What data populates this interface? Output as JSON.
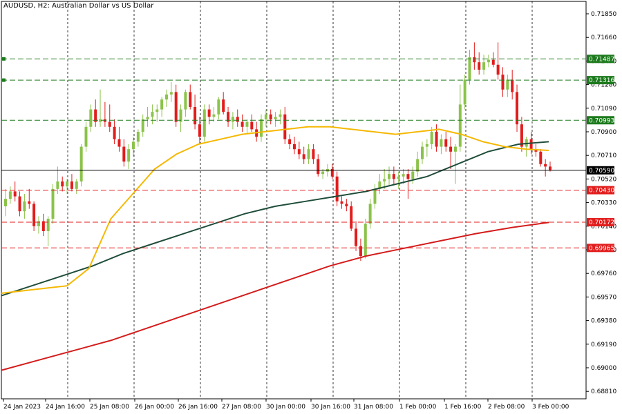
{
  "title": "AUDUSD, H2:  Australian Dollar vs US Dollar",
  "colors": {
    "bull": "#8bc34a",
    "bear": "#e21c1c",
    "ma_fast": "#f5b800",
    "ma_mid": "#1f4d3a",
    "ma_slow": "#d41c1c",
    "support": "#e21c1c",
    "resistance": "#1c7a1c",
    "current": "#000000",
    "grid": "#000000",
    "axis": "#000000"
  },
  "chart_data": {
    "type": "candlestick",
    "symbol": "AUDUSD",
    "timeframe": "H2",
    "ylim": [
      0.6875,
      0.7195
    ],
    "y_ticks": [
      "0.71850",
      "0.71660",
      "0.71470",
      "0.71280",
      "0.71090",
      "0.70900",
      "0.70710",
      "0.70520",
      "0.70330",
      "0.70140",
      "0.69950",
      "0.69760",
      "0.69570",
      "0.69380",
      "0.69190",
      "0.69000",
      "0.68810"
    ],
    "x_ticks": [
      "24 Jan 2023",
      "24 Jan 16:00",
      "25 Jan 08:00",
      "26 Jan 00:00",
      "26 Jan 16:00",
      "27 Jan 08:00",
      "30 Jan 00:00",
      "30 Jan 16:00",
      "31 Jan 08:00",
      "1 Feb 00:00",
      "1 Feb 16:00",
      "2 Feb 08:00",
      "3 Feb 00:00"
    ],
    "vertical_grid_dates": [
      "24 Jan 16:00",
      "26 Jan 00:00",
      "27 Jan 08:00",
      "30 Jan 16:00",
      "1 Feb 00:00",
      "2 Feb 08:00"
    ],
    "current_price": "0.70590",
    "levels": [
      {
        "price": "0.71487",
        "kind": "resistance"
      },
      {
        "price": "0.71316",
        "kind": "resistance"
      },
      {
        "price": "0.70993",
        "kind": "resistance"
      },
      {
        "price": "0.70430",
        "kind": "support"
      },
      {
        "price": "0.70172",
        "kind": "support"
      },
      {
        "price": "0.69965",
        "kind": "support"
      }
    ],
    "ohlc": [
      [
        0.703,
        0.7044,
        0.7022,
        0.7036
      ],
      [
        0.7036,
        0.7046,
        0.7032,
        0.7042
      ],
      [
        0.7042,
        0.705,
        0.7034,
        0.7038
      ],
      [
        0.7038,
        0.7042,
        0.7022,
        0.7026
      ],
      [
        0.7026,
        0.704,
        0.702,
        0.7034
      ],
      [
        0.7034,
        0.7044,
        0.7028,
        0.7032
      ],
      [
        0.7032,
        0.7034,
        0.701,
        0.7014
      ],
      [
        0.7014,
        0.7022,
        0.7008,
        0.7018
      ],
      [
        0.7018,
        0.7024,
        0.7006,
        0.701
      ],
      [
        0.701,
        0.7022,
        0.6998,
        0.702
      ],
      [
        0.702,
        0.7048,
        0.7016,
        0.7044
      ],
      [
        0.7044,
        0.7062,
        0.704,
        0.705
      ],
      [
        0.705,
        0.7054,
        0.7042,
        0.7046
      ],
      [
        0.7046,
        0.7052,
        0.704,
        0.705
      ],
      [
        0.705,
        0.7056,
        0.7042,
        0.7044
      ],
      [
        0.7044,
        0.7052,
        0.704,
        0.705
      ],
      [
        0.705,
        0.708,
        0.7046,
        0.7078
      ],
      [
        0.7078,
        0.7098,
        0.7074,
        0.7094
      ],
      [
        0.7094,
        0.7112,
        0.709,
        0.7108
      ],
      [
        0.7108,
        0.7116,
        0.7094,
        0.7098
      ],
      [
        0.7098,
        0.7124,
        0.7094,
        0.71
      ],
      [
        0.71,
        0.7114,
        0.7094,
        0.7098
      ],
      [
        0.7098,
        0.7112,
        0.709,
        0.7094
      ],
      [
        0.7094,
        0.71,
        0.708,
        0.7084
      ],
      [
        0.7084,
        0.7094,
        0.7074,
        0.7078
      ],
      [
        0.7078,
        0.7084,
        0.7062,
        0.7066
      ],
      [
        0.7066,
        0.708,
        0.706,
        0.7076
      ],
      [
        0.7076,
        0.7086,
        0.707,
        0.7082
      ],
      [
        0.7082,
        0.7092,
        0.7078,
        0.709
      ],
      [
        0.709,
        0.7104,
        0.7086,
        0.71
      ],
      [
        0.71,
        0.711,
        0.7094,
        0.7102
      ],
      [
        0.7102,
        0.7112,
        0.7096,
        0.7106
      ],
      [
        0.7106,
        0.7112,
        0.7098,
        0.7108
      ],
      [
        0.7108,
        0.7118,
        0.7102,
        0.7116
      ],
      [
        0.7116,
        0.7124,
        0.711,
        0.712
      ],
      [
        0.712,
        0.713,
        0.7114,
        0.7122
      ],
      [
        0.7122,
        0.7128,
        0.7094,
        0.7098
      ],
      [
        0.7098,
        0.7112,
        0.709,
        0.7108
      ],
      [
        0.7108,
        0.7124,
        0.7102,
        0.7122
      ],
      [
        0.7122,
        0.7128,
        0.7108,
        0.711
      ],
      [
        0.711,
        0.712,
        0.7092,
        0.7096
      ],
      [
        0.7096,
        0.7102,
        0.708,
        0.7086
      ],
      [
        0.7086,
        0.7112,
        0.7082,
        0.7108
      ],
      [
        0.7108,
        0.7112,
        0.7096,
        0.7102
      ],
      [
        0.7102,
        0.711,
        0.7098,
        0.7104
      ],
      [
        0.7104,
        0.7118,
        0.71,
        0.7116
      ],
      [
        0.7116,
        0.7122,
        0.7104,
        0.7106
      ],
      [
        0.7106,
        0.711,
        0.7094,
        0.7098
      ],
      [
        0.7098,
        0.7106,
        0.7092,
        0.7102
      ],
      [
        0.7102,
        0.7108,
        0.7094,
        0.7098
      ],
      [
        0.7098,
        0.7104,
        0.709,
        0.7094
      ],
      [
        0.7094,
        0.71,
        0.7088,
        0.7098
      ],
      [
        0.7098,
        0.7104,
        0.709,
        0.7092
      ],
      [
        0.7092,
        0.7098,
        0.7082,
        0.7086
      ],
      [
        0.7086,
        0.7104,
        0.7082,
        0.71
      ],
      [
        0.71,
        0.7108,
        0.7094,
        0.7104
      ],
      [
        0.7104,
        0.7108,
        0.7096,
        0.71
      ],
      [
        0.71,
        0.7106,
        0.7094,
        0.7102
      ],
      [
        0.7102,
        0.7108,
        0.7096,
        0.7104
      ],
      [
        0.7104,
        0.711,
        0.708,
        0.7084
      ],
      [
        0.7084,
        0.7088,
        0.7076,
        0.708
      ],
      [
        0.708,
        0.7086,
        0.7072,
        0.7076
      ],
      [
        0.7076,
        0.7082,
        0.7068,
        0.7072
      ],
      [
        0.7072,
        0.7078,
        0.7064,
        0.7068
      ],
      [
        0.7068,
        0.708,
        0.7064,
        0.7076
      ],
      [
        0.7076,
        0.708,
        0.7064,
        0.7068
      ],
      [
        0.7068,
        0.7072,
        0.7054,
        0.7056
      ],
      [
        0.7056,
        0.706,
        0.7052,
        0.7058
      ],
      [
        0.7058,
        0.7064,
        0.7054,
        0.706
      ],
      [
        0.706,
        0.7064,
        0.7052,
        0.7054
      ],
      [
        0.7054,
        0.7058,
        0.703,
        0.7034
      ],
      [
        0.7034,
        0.7038,
        0.7028,
        0.7032
      ],
      [
        0.7032,
        0.7036,
        0.7026,
        0.703
      ],
      [
        0.703,
        0.7034,
        0.701,
        0.7012
      ],
      [
        0.7012,
        0.7018,
        0.6994,
        0.6998
      ],
      [
        0.6998,
        0.7004,
        0.6986,
        0.699
      ],
      [
        0.699,
        0.702,
        0.6988,
        0.7016
      ],
      [
        0.7016,
        0.7036,
        0.7012,
        0.7032
      ],
      [
        0.7032,
        0.7048,
        0.7028,
        0.7044
      ],
      [
        0.7044,
        0.7056,
        0.704,
        0.705
      ],
      [
        0.705,
        0.706,
        0.7044,
        0.7052
      ],
      [
        0.7052,
        0.7062,
        0.7046,
        0.7056
      ],
      [
        0.7056,
        0.7062,
        0.7048,
        0.7052
      ],
      [
        0.7052,
        0.7058,
        0.7044,
        0.7054
      ],
      [
        0.7054,
        0.706,
        0.7048,
        0.7056
      ],
      [
        0.7056,
        0.706,
        0.7036,
        0.7052
      ],
      [
        0.7052,
        0.7062,
        0.7048,
        0.7058
      ],
      [
        0.7058,
        0.7074,
        0.7054,
        0.7068
      ],
      [
        0.7068,
        0.7082,
        0.7064,
        0.7078
      ],
      [
        0.7078,
        0.7084,
        0.707,
        0.708
      ],
      [
        0.708,
        0.7094,
        0.7076,
        0.709
      ],
      [
        0.709,
        0.7096,
        0.7074,
        0.7078
      ],
      [
        0.7078,
        0.7088,
        0.7072,
        0.7084
      ],
      [
        0.7084,
        0.709,
        0.7074,
        0.7078
      ],
      [
        0.7078,
        0.7086,
        0.706,
        0.7074
      ],
      [
        0.7074,
        0.708,
        0.7048,
        0.7078
      ],
      [
        0.7078,
        0.7128,
        0.7074,
        0.7112
      ],
      [
        0.7112,
        0.7136,
        0.7108,
        0.7132
      ],
      [
        0.7132,
        0.7156,
        0.7128,
        0.715
      ],
      [
        0.715,
        0.7162,
        0.714,
        0.7146
      ],
      [
        0.7146,
        0.7154,
        0.7136,
        0.714
      ],
      [
        0.714,
        0.7152,
        0.7136,
        0.7146
      ],
      [
        0.7146,
        0.7152,
        0.7142,
        0.7148
      ],
      [
        0.7148,
        0.7154,
        0.7142,
        0.7144
      ],
      [
        0.7144,
        0.7162,
        0.7132,
        0.7136
      ],
      [
        0.7136,
        0.7142,
        0.7118,
        0.7124
      ],
      [
        0.7124,
        0.7136,
        0.7118,
        0.7132
      ],
      [
        0.7132,
        0.714,
        0.7116,
        0.7122
      ],
      [
        0.7122,
        0.7128,
        0.709,
        0.7096
      ],
      [
        0.7096,
        0.7102,
        0.7074,
        0.7078
      ],
      [
        0.7078,
        0.7086,
        0.707,
        0.7084
      ],
      [
        0.7084,
        0.709,
        0.7072,
        0.7076
      ],
      [
        0.7076,
        0.708,
        0.707,
        0.7074
      ],
      [
        0.7074,
        0.7076,
        0.7062,
        0.7064
      ],
      [
        0.7064,
        0.7068,
        0.7054,
        0.7062
      ],
      [
        0.7062,
        0.7066,
        0.7058,
        0.7059
      ]
    ],
    "ma_fast": [
      0.696,
      0.6962,
      0.6964,
      0.6966,
      0.698,
      0.702,
      0.704,
      0.706,
      0.7072,
      0.708,
      0.7084,
      0.7088,
      0.709,
      0.7092,
      0.7094,
      0.7094,
      0.7092,
      0.709,
      0.7088,
      0.709,
      0.7092,
      0.7088,
      0.7082,
      0.7078,
      0.7076,
      0.7075
    ],
    "ma_mid": [
      0.6958,
      0.6966,
      0.6974,
      0.6982,
      0.6992,
      0.7,
      0.7008,
      0.7016,
      0.7024,
      0.703,
      0.7034,
      0.7038,
      0.7042,
      0.7048,
      0.7054,
      0.7064,
      0.7074,
      0.708,
      0.7082
    ],
    "ma_slow": [
      0.6898,
      0.6906,
      0.6914,
      0.6922,
      0.6932,
      0.6942,
      0.6952,
      0.6962,
      0.6972,
      0.6982,
      0.699,
      0.6996,
      0.7002,
      0.7008,
      0.7013,
      0.7017
    ]
  }
}
